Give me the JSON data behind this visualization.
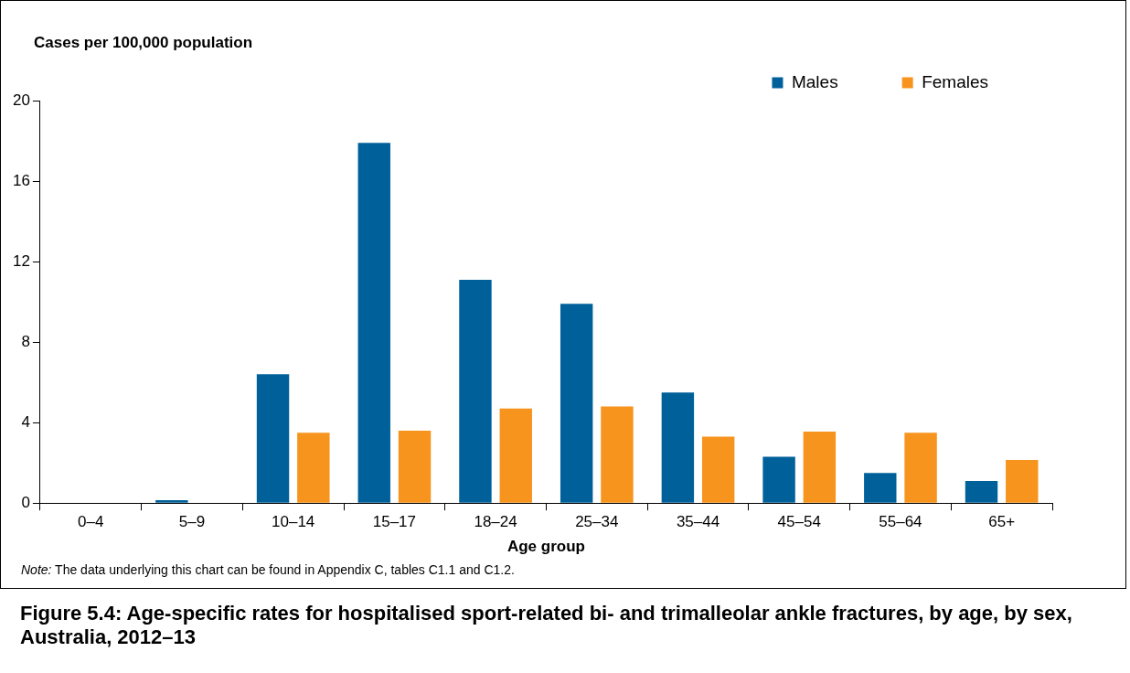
{
  "chart_data": {
    "type": "bar",
    "title": "Figure 5.4: Age-specific rates for hospitalised sport-related bi- and trimalleolar ankle fractures, by age, by sex, Australia, 2012–13",
    "xlabel": "Age group",
    "ylabel": "Cases per 100,000 population",
    "categories": [
      "0–4",
      "5–9",
      "10–14",
      "15–17",
      "18–24",
      "25–34",
      "35–44",
      "45–54",
      "55–64",
      "65+"
    ],
    "series": [
      {
        "name": "Males",
        "color": "#00619a",
        "values": [
          0,
          0.15,
          6.4,
          17.9,
          11.1,
          9.9,
          5.5,
          2.3,
          1.5,
          1.1
        ]
      },
      {
        "name": "Females",
        "color": "#f7941d",
        "values": [
          0,
          0,
          3.5,
          3.6,
          4.7,
          4.8,
          3.3,
          3.55,
          3.5,
          2.15
        ]
      }
    ],
    "ylim": [
      0,
      20
    ],
    "yticks": [
      0,
      4,
      8,
      12,
      16,
      20
    ],
    "grid": false,
    "legend": "top right",
    "annotations": [
      "Note: The data underlying this chart can be found in Appendix C, tables C1.1 and C1.2."
    ]
  }
}
